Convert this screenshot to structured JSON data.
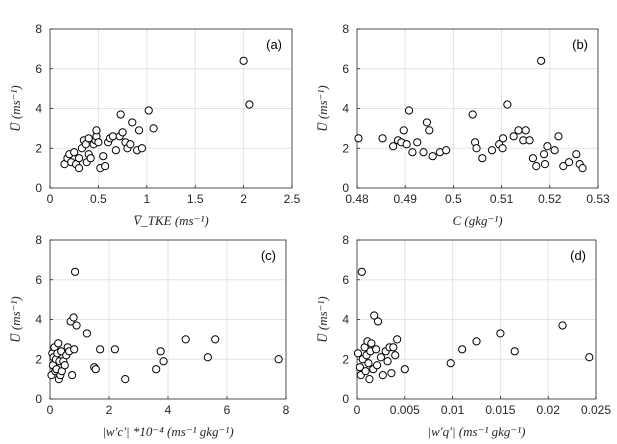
{
  "figure": {
    "background": "#ffffff",
    "marker_color": "#000000",
    "grid_color": "#e3e3e3"
  },
  "chart_data": [
    {
      "id": "a",
      "type": "scatter",
      "panel_label": "(a)",
      "xlabel": "V̅_TKE (ms⁻¹)",
      "ylabel": "U̅ (ms⁻¹)",
      "xlim": [
        0,
        2.5
      ],
      "ylim": [
        0,
        8
      ],
      "xticks": [
        0,
        0.5,
        1,
        1.5,
        2,
        2.5
      ],
      "xtick_labels": [
        "0",
        "0.5",
        "1",
        "1.5",
        "2",
        "2.5"
      ],
      "yticks": [
        0,
        2,
        4,
        6,
        8
      ],
      "ytick_labels": [
        "0",
        "2",
        "4",
        "6",
        "8"
      ],
      "points": [
        [
          0.15,
          1.2
        ],
        [
          0.18,
          1.5
        ],
        [
          0.2,
          1.7
        ],
        [
          0.22,
          1.3
        ],
        [
          0.25,
          1.8
        ],
        [
          0.27,
          1.2
        ],
        [
          0.3,
          1.5
        ],
        [
          0.3,
          1.0
        ],
        [
          0.33,
          2.0
        ],
        [
          0.35,
          2.4
        ],
        [
          0.37,
          2.2
        ],
        [
          0.38,
          1.3
        ],
        [
          0.4,
          1.7
        ],
        [
          0.4,
          2.5
        ],
        [
          0.42,
          1.5
        ],
        [
          0.45,
          2.2
        ],
        [
          0.47,
          2.4
        ],
        [
          0.48,
          2.6
        ],
        [
          0.48,
          2.9
        ],
        [
          0.5,
          2.3
        ],
        [
          0.52,
          1.0
        ],
        [
          0.55,
          1.6
        ],
        [
          0.57,
          1.1
        ],
        [
          0.6,
          2.3
        ],
        [
          0.62,
          2.5
        ],
        [
          0.65,
          2.6
        ],
        [
          0.68,
          1.9
        ],
        [
          0.72,
          2.6
        ],
        [
          0.73,
          3.7
        ],
        [
          0.75,
          2.8
        ],
        [
          0.78,
          2.3
        ],
        [
          0.8,
          2.0
        ],
        [
          0.83,
          2.2
        ],
        [
          0.85,
          3.3
        ],
        [
          0.9,
          1.9
        ],
        [
          0.92,
          2.9
        ],
        [
          0.95,
          2.0
        ],
        [
          1.02,
          3.9
        ],
        [
          1.07,
          3.0
        ],
        [
          2.0,
          6.4
        ],
        [
          2.06,
          4.2
        ]
      ]
    },
    {
      "id": "b",
      "type": "scatter",
      "panel_label": "(b)",
      "xlabel": "C (gkg⁻¹)",
      "ylabel": "U̅ (ms⁻¹)",
      "xlim": [
        0.48,
        0.53
      ],
      "ylim": [
        0,
        8
      ],
      "xticks": [
        0.48,
        0.49,
        0.5,
        0.51,
        0.52,
        0.53
      ],
      "xtick_labels": [
        "0.48",
        "0.49",
        "0.5",
        "0.51",
        "0.52",
        "0.53"
      ],
      "yticks": [
        0,
        2,
        4,
        6,
        8
      ],
      "ytick_labels": [
        "0",
        "2",
        "4",
        "6",
        "8"
      ],
      "points": [
        [
          0.4803,
          2.5
        ],
        [
          0.4853,
          2.5
        ],
        [
          0.4875,
          2.1
        ],
        [
          0.4885,
          2.4
        ],
        [
          0.4892,
          2.3
        ],
        [
          0.4897,
          2.9
        ],
        [
          0.4903,
          2.2
        ],
        [
          0.4908,
          3.9
        ],
        [
          0.4915,
          1.8
        ],
        [
          0.4925,
          2.3
        ],
        [
          0.4938,
          1.8
        ],
        [
          0.4945,
          3.3
        ],
        [
          0.495,
          2.9
        ],
        [
          0.4957,
          1.6
        ],
        [
          0.4972,
          1.8
        ],
        [
          0.4985,
          1.9
        ],
        [
          0.504,
          3.7
        ],
        [
          0.5045,
          2.3
        ],
        [
          0.5048,
          2.0
        ],
        [
          0.506,
          1.5
        ],
        [
          0.508,
          1.9
        ],
        [
          0.5095,
          2.2
        ],
        [
          0.5102,
          2.0
        ],
        [
          0.5103,
          2.5
        ],
        [
          0.5112,
          4.2
        ],
        [
          0.5125,
          2.6
        ],
        [
          0.5135,
          2.9
        ],
        [
          0.5145,
          2.4
        ],
        [
          0.515,
          2.9
        ],
        [
          0.5158,
          2.4
        ],
        [
          0.5165,
          1.5
        ],
        [
          0.5172,
          1.1
        ],
        [
          0.5182,
          6.4
        ],
        [
          0.5188,
          1.7
        ],
        [
          0.519,
          1.2
        ],
        [
          0.5195,
          2.1
        ],
        [
          0.521,
          1.9
        ],
        [
          0.5218,
          2.6
        ],
        [
          0.5228,
          1.1
        ],
        [
          0.524,
          1.3
        ],
        [
          0.5255,
          1.7
        ],
        [
          0.5262,
          1.2
        ],
        [
          0.5268,
          1.0
        ]
      ]
    },
    {
      "id": "c",
      "type": "scatter",
      "panel_label": "(c)",
      "xlabel": "|w′c′| *10⁻⁴ (ms⁻¹ gkg⁻¹)",
      "ylabel": "U̅ (ms⁻¹)",
      "xlim": [
        0,
        8
      ],
      "ylim": [
        0,
        8
      ],
      "xticks": [
        0,
        2,
        4,
        6,
        8
      ],
      "xtick_labels": [
        "0",
        "2",
        "4",
        "6",
        "8"
      ],
      "yticks": [
        0,
        2,
        4,
        6,
        8
      ],
      "ytick_labels": [
        "0",
        "2",
        "4",
        "6",
        "8"
      ],
      "points": [
        [
          0.05,
          1.2
        ],
        [
          0.08,
          2.3
        ],
        [
          0.1,
          1.7
        ],
        [
          0.12,
          2.1
        ],
        [
          0.15,
          2.6
        ],
        [
          0.18,
          1.4
        ],
        [
          0.2,
          2.0
        ],
        [
          0.22,
          1.5
        ],
        [
          0.25,
          2.3
        ],
        [
          0.28,
          2.8
        ],
        [
          0.3,
          1.0
        ],
        [
          0.32,
          1.9
        ],
        [
          0.35,
          1.2
        ],
        [
          0.38,
          2.4
        ],
        [
          0.4,
          1.4
        ],
        [
          0.45,
          1.9
        ],
        [
          0.5,
          1.7
        ],
        [
          0.55,
          2.2
        ],
        [
          0.6,
          2.6
        ],
        [
          0.65,
          2.4
        ],
        [
          0.7,
          3.9
        ],
        [
          0.75,
          1.2
        ],
        [
          0.8,
          4.1
        ],
        [
          0.82,
          2.5
        ],
        [
          0.85,
          6.4
        ],
        [
          0.9,
          3.7
        ],
        [
          1.25,
          3.3
        ],
        [
          1.5,
          1.6
        ],
        [
          1.55,
          1.5
        ],
        [
          1.7,
          2.5
        ],
        [
          2.2,
          2.5
        ],
        [
          2.55,
          1.0
        ],
        [
          3.6,
          1.5
        ],
        [
          3.75,
          2.4
        ],
        [
          3.85,
          1.9
        ],
        [
          4.6,
          3.0
        ],
        [
          5.35,
          2.1
        ],
        [
          5.6,
          3.0
        ],
        [
          7.75,
          2.0
        ]
      ]
    },
    {
      "id": "d",
      "type": "scatter",
      "panel_label": "(d)",
      "xlabel": "|w′q′| (ms⁻¹ gkg⁻¹)",
      "ylabel": "U̅ (ms⁻¹)",
      "xlim": [
        0,
        0.025
      ],
      "ylim": [
        0,
        8
      ],
      "xticks": [
        0,
        0.005,
        0.01,
        0.015,
        0.02,
        0.025
      ],
      "xtick_labels": [
        "0",
        "0.005",
        "0.01",
        "0.015",
        "0.02",
        "0.025"
      ],
      "yticks": [
        0,
        2,
        4,
        6,
        8
      ],
      "ytick_labels": [
        "0",
        "2",
        "4",
        "6",
        "8"
      ],
      "points": [
        [
          0.0001,
          2.3
        ],
        [
          0.0003,
          1.6
        ],
        [
          0.0004,
          1.2
        ],
        [
          0.0005,
          6.4
        ],
        [
          0.0006,
          2.0
        ],
        [
          0.0008,
          2.6
        ],
        [
          0.0009,
          1.4
        ],
        [
          0.001,
          2.2
        ],
        [
          0.0011,
          2.9
        ],
        [
          0.0012,
          1.8
        ],
        [
          0.0013,
          1.0
        ],
        [
          0.0014,
          2.4
        ],
        [
          0.0015,
          2.8
        ],
        [
          0.0017,
          1.5
        ],
        [
          0.0018,
          4.2
        ],
        [
          0.002,
          2.5
        ],
        [
          0.0021,
          1.7
        ],
        [
          0.0022,
          3.9
        ],
        [
          0.0025,
          2.1
        ],
        [
          0.0027,
          1.2
        ],
        [
          0.003,
          2.4
        ],
        [
          0.0032,
          1.9
        ],
        [
          0.0034,
          2.6
        ],
        [
          0.0036,
          1.3
        ],
        [
          0.0038,
          2.6
        ],
        [
          0.004,
          2.2
        ],
        [
          0.0042,
          3.0
        ],
        [
          0.005,
          1.5
        ],
        [
          0.0098,
          1.8
        ],
        [
          0.011,
          2.5
        ],
        [
          0.0125,
          2.9
        ],
        [
          0.015,
          3.3
        ],
        [
          0.0165,
          2.4
        ],
        [
          0.0215,
          3.7
        ],
        [
          0.0243,
          2.1
        ]
      ]
    }
  ]
}
